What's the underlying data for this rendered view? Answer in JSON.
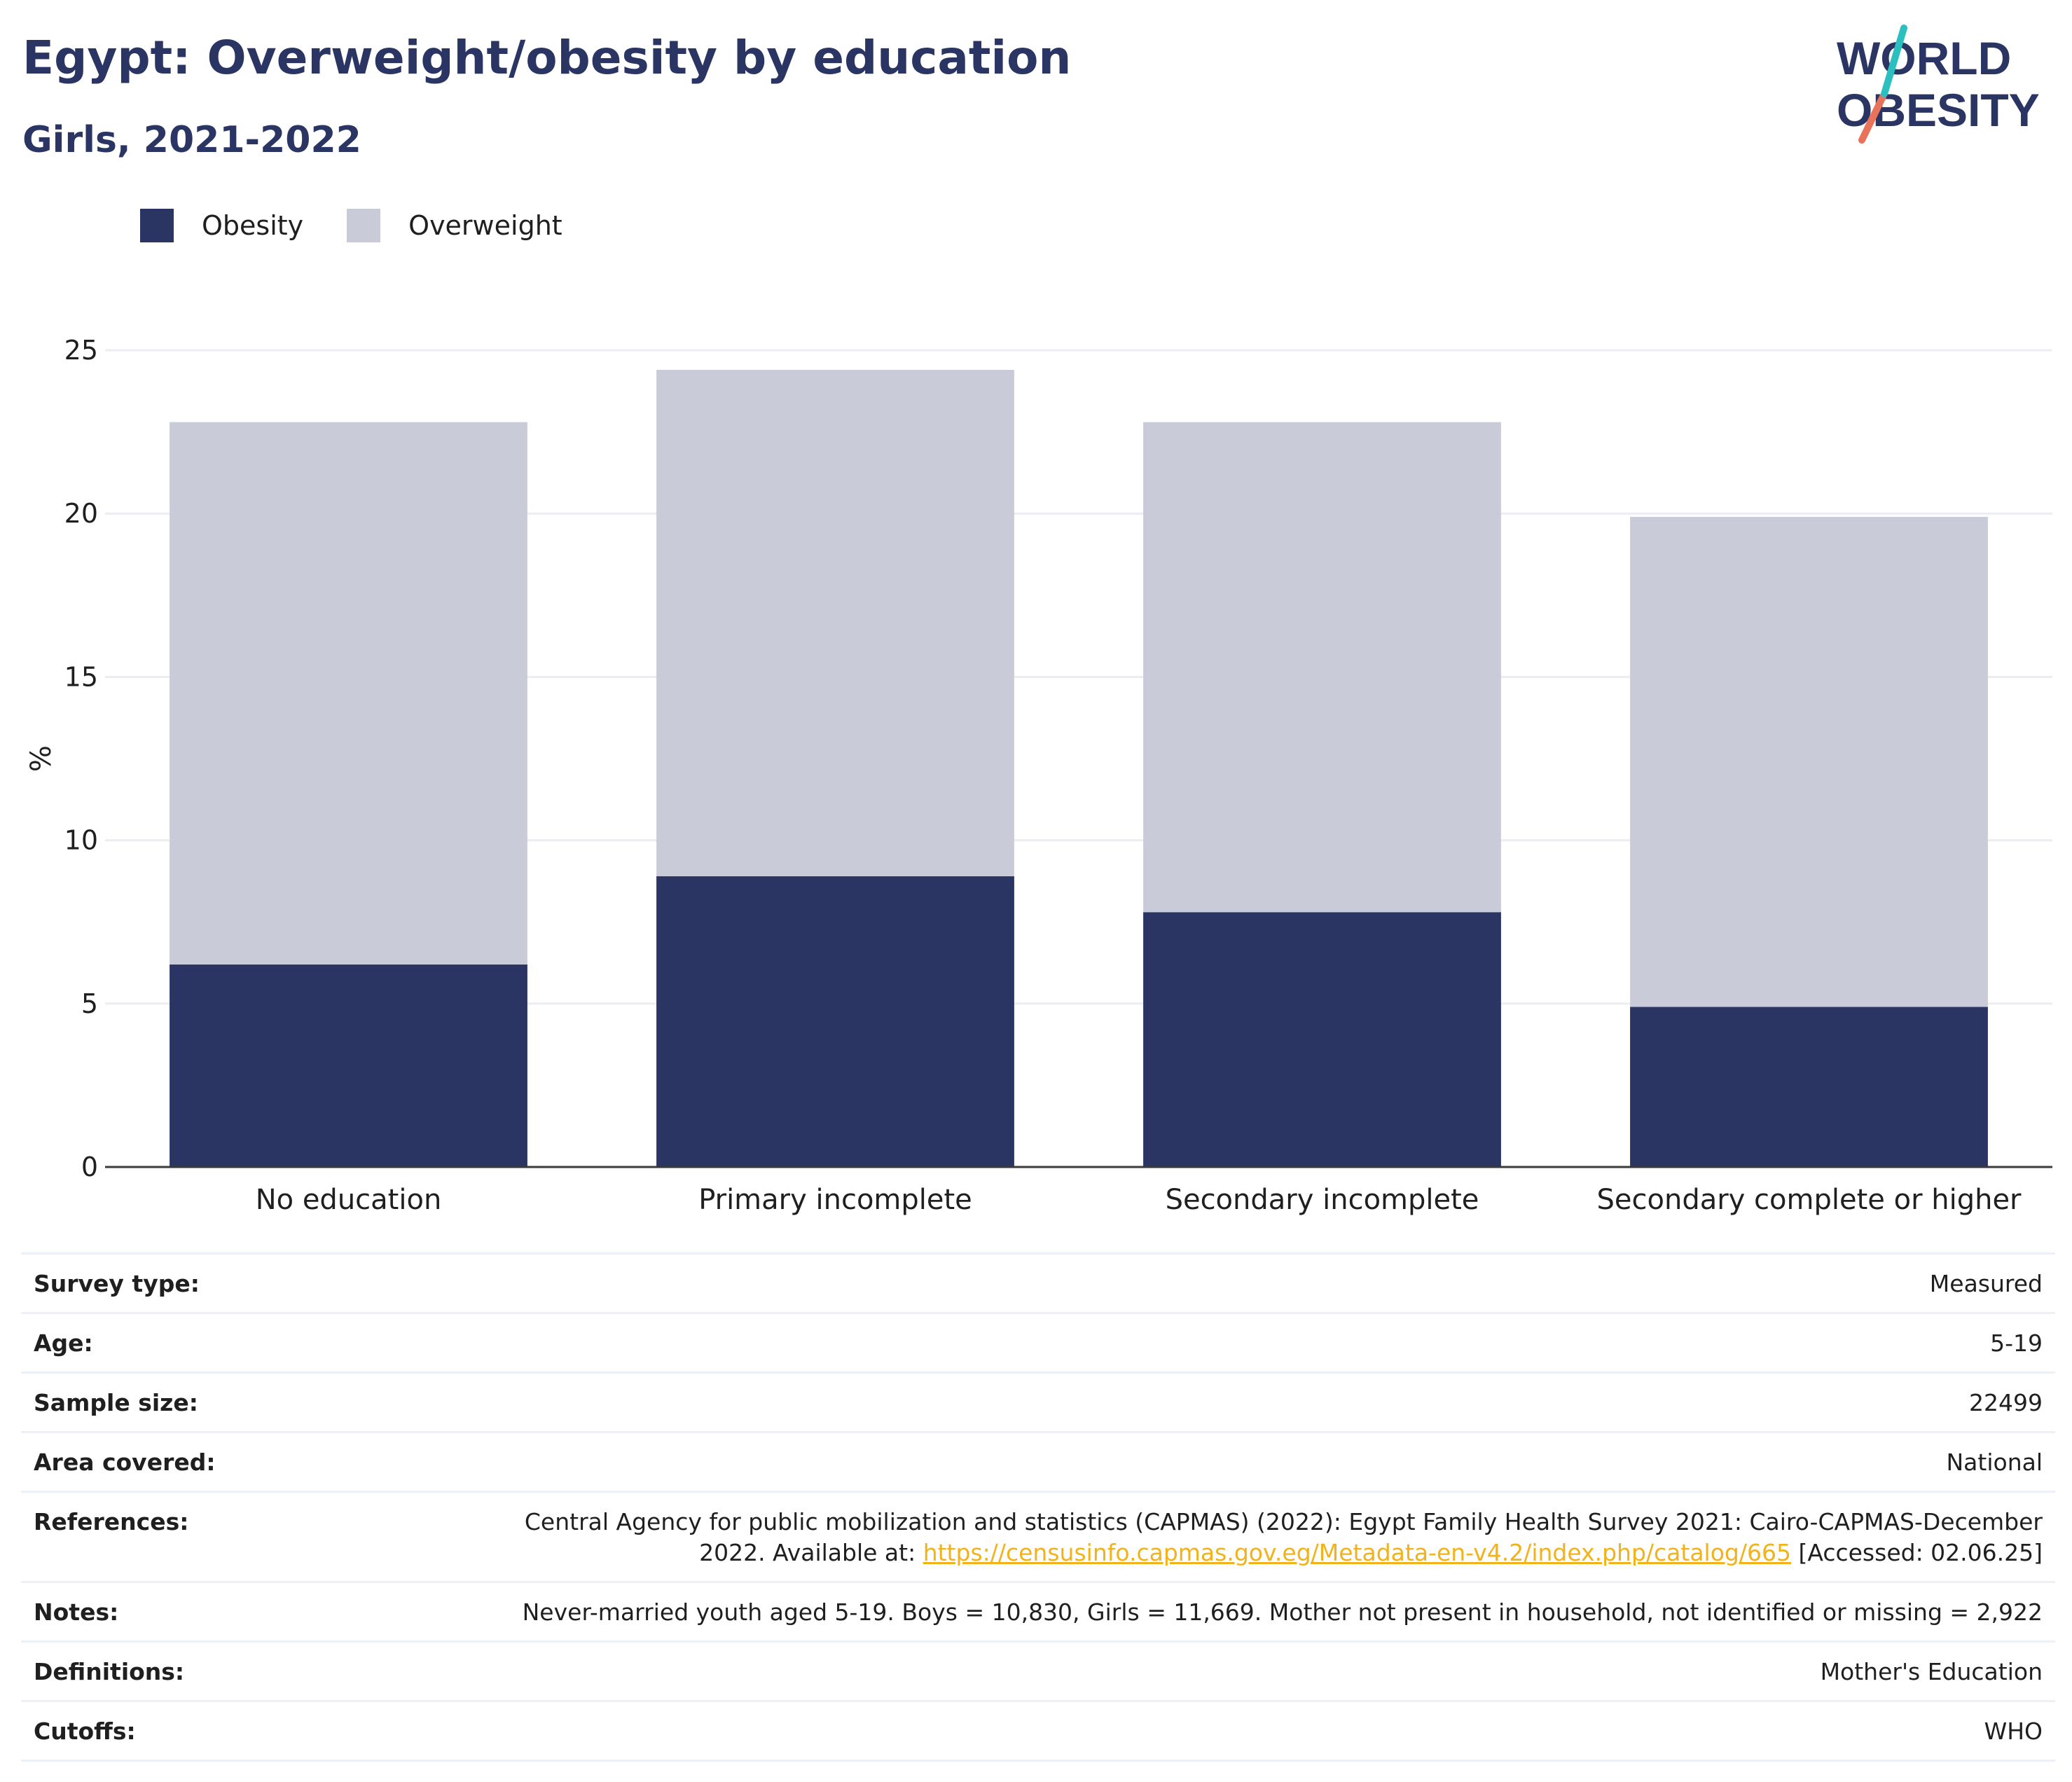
{
  "title": "Egypt: Overweight/obesity by education",
  "subtitle": "Girls, 2021-2022",
  "logo": {
    "line1": "WORLD",
    "line2": "OBESITY",
    "colors": {
      "text": "#2a3563",
      "slash_top": "#2bbfbf",
      "slash_bottom": "#e8735a"
    }
  },
  "legend": [
    {
      "label": "Obesity",
      "color": "#2a3563"
    },
    {
      "label": "Overweight",
      "color": "#c9ccd8"
    }
  ],
  "chart_data": {
    "type": "bar",
    "stacked": true,
    "categories": [
      "No education",
      "Primary incomplete",
      "Secondary incomplete",
      "Secondary complete or higher"
    ],
    "series": [
      {
        "name": "Obesity",
        "color": "#2a3563",
        "values": [
          6.2,
          8.9,
          7.8,
          4.9
        ]
      },
      {
        "name": "Overweight",
        "color": "#c9ccd8",
        "values": [
          16.6,
          15.5,
          15.0,
          15.0
        ]
      }
    ],
    "ylabel": "%",
    "ylim": [
      0,
      25
    ],
    "yticks": [
      0,
      5,
      10,
      15,
      20,
      25
    ],
    "grid": true,
    "legend_position": "top-left"
  },
  "metadata": [
    {
      "key": "Survey type:",
      "value": "Measured"
    },
    {
      "key": "Age:",
      "value": "5-19"
    },
    {
      "key": "Sample size:",
      "value": "22499"
    },
    {
      "key": "Area covered:",
      "value": "National"
    },
    {
      "key": "References:",
      "value": "Central Agency for public mobilization and statistics (CAPMAS) (2022): Egypt Family Health Survey 2021: Cairo-CAPMAS-December 2022. Available at:",
      "link": "https://censusinfo.capmas.gov.eg/Metadata-en-v4.2/index.php/catalog/665",
      "suffix": "[Accessed: 02.06.25]"
    },
    {
      "key": "Notes:",
      "value": "Never-married youth aged 5-19. Boys = 10,830, Girls = 11,669. Mother not present in household, not identified or missing = 2,922"
    },
    {
      "key": "Definitions:",
      "value": "Mother's Education"
    },
    {
      "key": "Cutoffs:",
      "value": "WHO"
    }
  ]
}
